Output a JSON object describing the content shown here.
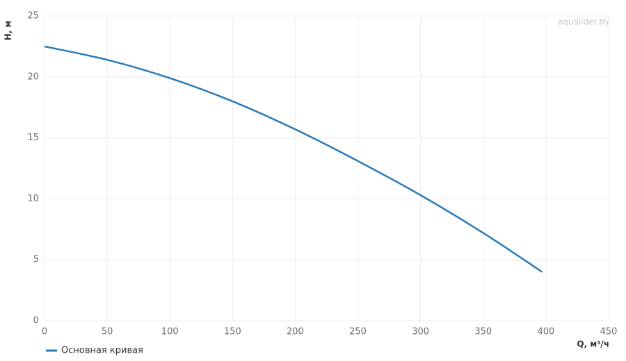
{
  "chart_data": {
    "type": "line",
    "x_label": "Q, м³/ч",
    "y_label": "H, м",
    "watermark": "aqualider.by",
    "x": [
      0,
      50,
      100,
      150,
      200,
      250,
      300,
      350,
      397
    ],
    "series": [
      {
        "name": "Основная кривая",
        "color": "#2a7ab8",
        "values": [
          22.5,
          21.4,
          19.9,
          18.0,
          15.7,
          13.1,
          10.3,
          7.2,
          4.0
        ]
      }
    ],
    "xlim": [
      0,
      450
    ],
    "xticks": [
      0,
      50,
      100,
      150,
      200,
      250,
      300,
      350,
      400,
      450
    ],
    "ylim": [
      0,
      25
    ],
    "yticks": [
      0,
      5,
      10,
      15,
      20,
      25
    ],
    "grid": true,
    "legend": "bottom-left"
  }
}
